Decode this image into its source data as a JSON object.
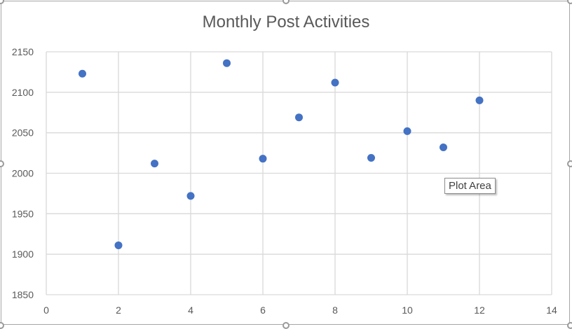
{
  "chart_data": {
    "type": "scatter",
    "title": "Monthly Post Activities",
    "xlabel": "",
    "ylabel": "",
    "xlim": [
      0,
      14
    ],
    "ylim": [
      1850,
      2150
    ],
    "x_ticks": [
      0,
      2,
      4,
      6,
      8,
      10,
      12,
      14
    ],
    "y_ticks": [
      1850,
      1900,
      1950,
      2000,
      2050,
      2100,
      2150
    ],
    "grid": true,
    "legend": "none",
    "marker_color": "#4472c4",
    "series": [
      {
        "x": [
          1,
          2,
          3,
          4,
          5,
          6,
          7,
          8,
          9,
          10,
          11,
          12
        ],
        "y": [
          2123,
          1911,
          2012,
          1972,
          2136,
          2018,
          2069,
          2112,
          2019,
          2052,
          2032,
          2090
        ]
      }
    ]
  },
  "tooltip": {
    "label": "Plot Area"
  }
}
